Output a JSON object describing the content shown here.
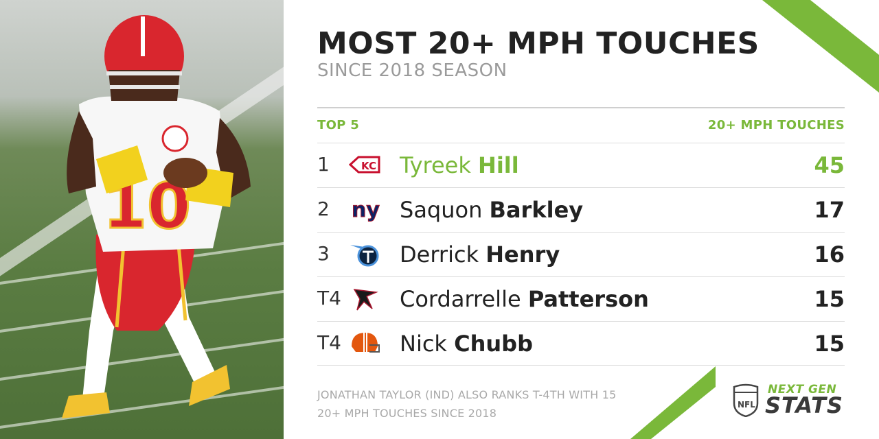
{
  "header": {
    "title": "MOST 20+ MPH TOUCHES",
    "subtitle": "SINCE 2018 SEASON"
  },
  "table": {
    "left_header": "TOP 5",
    "right_header": "20+ MPH TOUCHES",
    "rows": [
      {
        "rank": "1",
        "first": "Tyreek",
        "last": "Hill",
        "value": "45",
        "team_icon": "chiefs-logo-icon",
        "highlight": true
      },
      {
        "rank": "2",
        "first": "Saquon",
        "last": "Barkley",
        "value": "17",
        "team_icon": "giants-logo-icon"
      },
      {
        "rank": "3",
        "first": "Derrick",
        "last": "Henry",
        "value": "16",
        "team_icon": "titans-logo-icon"
      },
      {
        "rank": "T4",
        "first": "Cordarrelle",
        "last": "Patterson",
        "value": "15",
        "team_icon": "falcons-logo-icon"
      },
      {
        "rank": "T4",
        "first": "Nick",
        "last": "Chubb",
        "value": "15",
        "team_icon": "browns-logo-icon"
      }
    ]
  },
  "footnote": {
    "line1": "JONATHAN TAYLOR (IND) ALSO RANKS T-4TH WITH 15",
    "line2": "20+ MPH TOUCHES SINCE 2018"
  },
  "brand": {
    "next": "NEXT GEN",
    "stats": "STATS"
  },
  "colors": {
    "accent": "#7ab83a",
    "text": "#222222",
    "muted": "#9a9a9a"
  }
}
